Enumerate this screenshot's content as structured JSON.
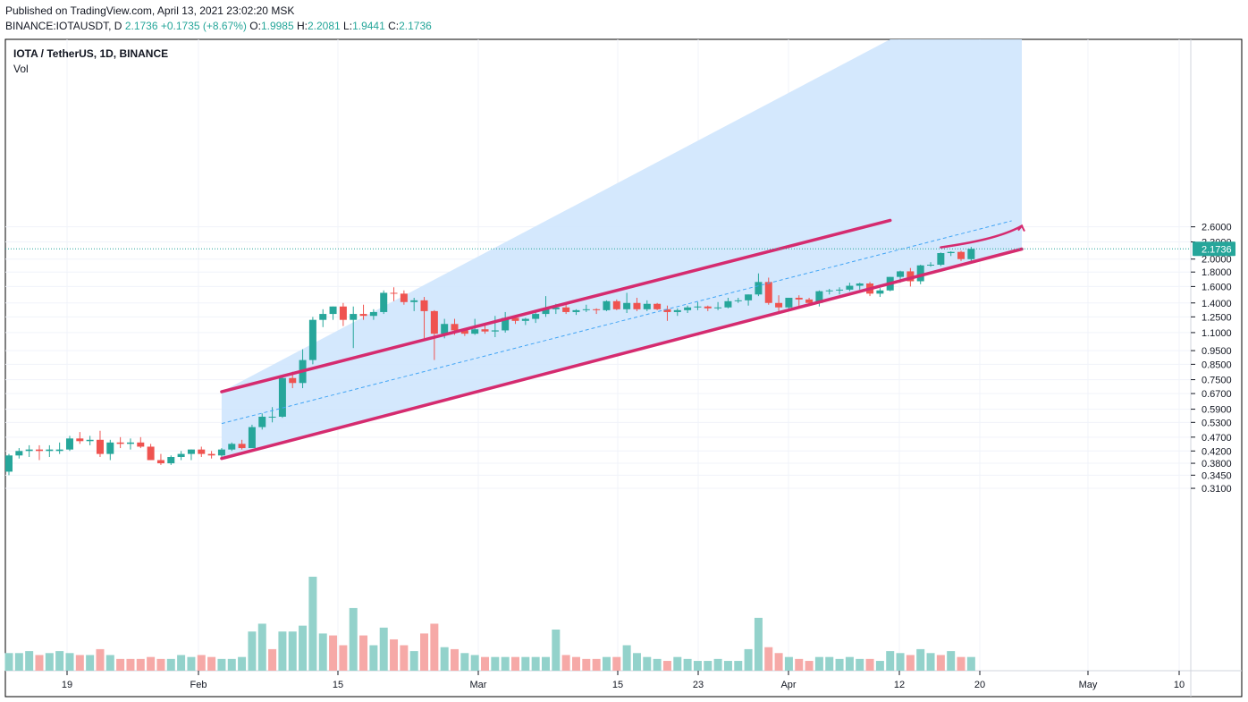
{
  "header": {
    "published": "Published on TradingView.com, April 13, 2021 23:02:20 MSK",
    "ticker": "BINANCE:IOTAUSDT, D",
    "last": "2.1736",
    "change": "+0.1735 (+8.67%)",
    "o_label": "O:",
    "o_val": "1.9985",
    "h_label": "H:",
    "h_val": "2.2081",
    "l_label": "L:",
    "l_val": "1.9441",
    "c_label": "C:",
    "c_val": "2.1736"
  },
  "legend": {
    "symbol": "IOTA / TetherUS, 1D, BINANCE",
    "vol": "Vol"
  },
  "colors": {
    "up": "#26a69a",
    "down": "#ef5350",
    "up_vol": "#93d2cb",
    "down_vol": "#f6a9a7",
    "channel": "#d52b6f",
    "fill": "#cfe6fd",
    "mid": "#42a5f5",
    "price_tag": "#26a69a"
  },
  "chart_data": {
    "type": "candlestick",
    "scale": "log",
    "price_label": "2.1736",
    "y_ticks": [
      "2.6000",
      "2.3000",
      "2.0000",
      "1.8000",
      "1.6000",
      "1.4000",
      "1.2500",
      "1.1000",
      "0.9500",
      "0.8500",
      "0.7500",
      "0.6700",
      "0.5900",
      "0.5300",
      "0.4700",
      "0.4200",
      "0.3800",
      "0.3450",
      "0.3100"
    ],
    "x_ticks": [
      "19",
      "Feb",
      "15",
      "Mar",
      "15",
      "23",
      "Apr",
      "12",
      "20",
      "May",
      "10"
    ],
    "start_date": "2021-01-11",
    "ohlc": [
      [
        0.355,
        0.41,
        0.345,
        0.405
      ],
      [
        0.405,
        0.43,
        0.395,
        0.42
      ],
      [
        0.42,
        0.44,
        0.4,
        0.425
      ],
      [
        0.425,
        0.44,
        0.39,
        0.42
      ],
      [
        0.42,
        0.44,
        0.4,
        0.425
      ],
      [
        0.42,
        0.45,
        0.41,
        0.425
      ],
      [
        0.425,
        0.475,
        0.42,
        0.465
      ],
      [
        0.465,
        0.49,
        0.445,
        0.455
      ],
      [
        0.455,
        0.475,
        0.44,
        0.46
      ],
      [
        0.46,
        0.495,
        0.4,
        0.41
      ],
      [
        0.41,
        0.46,
        0.39,
        0.45
      ],
      [
        0.45,
        0.47,
        0.43,
        0.445
      ],
      [
        0.445,
        0.465,
        0.425,
        0.45
      ],
      [
        0.45,
        0.47,
        0.43,
        0.435
      ],
      [
        0.435,
        0.445,
        0.39,
        0.39
      ],
      [
        0.39,
        0.41,
        0.375,
        0.38
      ],
      [
        0.38,
        0.405,
        0.375,
        0.4
      ],
      [
        0.4,
        0.42,
        0.39,
        0.41
      ],
      [
        0.41,
        0.425,
        0.39,
        0.425
      ],
      [
        0.425,
        0.435,
        0.4,
        0.41
      ],
      [
        0.41,
        0.42,
        0.395,
        0.405
      ],
      [
        0.405,
        0.43,
        0.4,
        0.425
      ],
      [
        0.425,
        0.45,
        0.42,
        0.445
      ],
      [
        0.445,
        0.46,
        0.425,
        0.43
      ],
      [
        0.43,
        0.52,
        0.43,
        0.51
      ],
      [
        0.51,
        0.57,
        0.5,
        0.555
      ],
      [
        0.555,
        0.6,
        0.53,
        0.555
      ],
      [
        0.555,
        0.77,
        0.55,
        0.76
      ],
      [
        0.76,
        0.8,
        0.7,
        0.73
      ],
      [
        0.73,
        0.96,
        0.7,
        0.88
      ],
      [
        0.88,
        1.25,
        0.85,
        1.22
      ],
      [
        1.22,
        1.33,
        1.15,
        1.28
      ],
      [
        1.28,
        1.36,
        1.22,
        1.36
      ],
      [
        1.36,
        1.4,
        1.16,
        1.22
      ],
      [
        1.22,
        1.36,
        0.97,
        1.28
      ],
      [
        1.28,
        1.38,
        1.22,
        1.26
      ],
      [
        1.26,
        1.33,
        1.22,
        1.3
      ],
      [
        1.3,
        1.55,
        1.28,
        1.52
      ],
      [
        1.52,
        1.59,
        1.42,
        1.51
      ],
      [
        1.51,
        1.55,
        1.38,
        1.41
      ],
      [
        1.41,
        1.46,
        1.31,
        1.43
      ],
      [
        1.43,
        1.47,
        1.05,
        1.31
      ],
      [
        1.31,
        1.32,
        0.88,
        1.09
      ],
      [
        1.09,
        1.23,
        1.05,
        1.18
      ],
      [
        1.18,
        1.23,
        1.08,
        1.12
      ],
      [
        1.12,
        1.14,
        1.07,
        1.09
      ],
      [
        1.09,
        1.23,
        1.08,
        1.13
      ],
      [
        1.13,
        1.18,
        1.09,
        1.11
      ],
      [
        1.11,
        1.26,
        1.06,
        1.12
      ],
      [
        1.12,
        1.3,
        1.1,
        1.24
      ],
      [
        1.24,
        1.26,
        1.18,
        1.21
      ],
      [
        1.21,
        1.24,
        1.17,
        1.23
      ],
      [
        1.23,
        1.31,
        1.19,
        1.28
      ],
      [
        1.28,
        1.48,
        1.25,
        1.33
      ],
      [
        1.33,
        1.39,
        1.28,
        1.35
      ],
      [
        1.35,
        1.4,
        1.28,
        1.3
      ],
      [
        1.3,
        1.33,
        1.27,
        1.32
      ],
      [
        1.32,
        1.38,
        1.3,
        1.33
      ],
      [
        1.33,
        1.34,
        1.28,
        1.32
      ],
      [
        1.32,
        1.43,
        1.31,
        1.42
      ],
      [
        1.42,
        1.44,
        1.32,
        1.33
      ],
      [
        1.33,
        1.52,
        1.29,
        1.4
      ],
      [
        1.4,
        1.46,
        1.31,
        1.33
      ],
      [
        1.33,
        1.43,
        1.31,
        1.39
      ],
      [
        1.39,
        1.4,
        1.32,
        1.33
      ],
      [
        1.33,
        1.37,
        1.21,
        1.3
      ],
      [
        1.3,
        1.34,
        1.26,
        1.32
      ],
      [
        1.32,
        1.37,
        1.29,
        1.35
      ],
      [
        1.35,
        1.41,
        1.32,
        1.36
      ],
      [
        1.36,
        1.37,
        1.31,
        1.34
      ],
      [
        1.34,
        1.41,
        1.32,
        1.35
      ],
      [
        1.35,
        1.46,
        1.34,
        1.42
      ],
      [
        1.42,
        1.46,
        1.4,
        1.43
      ],
      [
        1.43,
        1.5,
        1.37,
        1.5
      ],
      [
        1.5,
        1.78,
        1.48,
        1.66
      ],
      [
        1.66,
        1.72,
        1.38,
        1.4
      ],
      [
        1.4,
        1.49,
        1.29,
        1.35
      ],
      [
        1.35,
        1.45,
        1.33,
        1.46
      ],
      [
        1.46,
        1.49,
        1.36,
        1.44
      ],
      [
        1.44,
        1.46,
        1.38,
        1.4
      ],
      [
        1.4,
        1.55,
        1.36,
        1.54
      ],
      [
        1.54,
        1.57,
        1.5,
        1.55
      ],
      [
        1.55,
        1.59,
        1.5,
        1.56
      ],
      [
        1.56,
        1.65,
        1.54,
        1.61
      ],
      [
        1.61,
        1.65,
        1.56,
        1.64
      ],
      [
        1.64,
        1.66,
        1.48,
        1.51
      ],
      [
        1.51,
        1.58,
        1.47,
        1.55
      ],
      [
        1.55,
        1.73,
        1.54,
        1.73
      ],
      [
        1.73,
        1.82,
        1.65,
        1.81
      ],
      [
        1.81,
        1.86,
        1.6,
        1.67
      ],
      [
        1.67,
        1.91,
        1.63,
        1.9
      ],
      [
        1.9,
        1.95,
        1.88,
        1.91
      ],
      [
        1.91,
        2.11,
        1.89,
        2.1
      ],
      [
        2.1,
        2.13,
        2.05,
        2.12
      ],
      [
        2.12,
        2.14,
        1.97,
        2.0
      ],
      [
        1.9985,
        2.2081,
        1.9441,
        2.1736
      ]
    ],
    "volume": [
      [
        1,
        0.45
      ],
      [
        1,
        0.45
      ],
      [
        1,
        0.5
      ],
      [
        0,
        0.4
      ],
      [
        1,
        0.45
      ],
      [
        1,
        0.5
      ],
      [
        1,
        0.45
      ],
      [
        0,
        0.4
      ],
      [
        1,
        0.4
      ],
      [
        0,
        0.55
      ],
      [
        1,
        0.4
      ],
      [
        0,
        0.3
      ],
      [
        0,
        0.3
      ],
      [
        0,
        0.3
      ],
      [
        0,
        0.35
      ],
      [
        0,
        0.3
      ],
      [
        1,
        0.3
      ],
      [
        1,
        0.4
      ],
      [
        1,
        0.35
      ],
      [
        0,
        0.4
      ],
      [
        0,
        0.35
      ],
      [
        1,
        0.3
      ],
      [
        1,
        0.3
      ],
      [
        1,
        0.35
      ],
      [
        1,
        1.0
      ],
      [
        1,
        1.2
      ],
      [
        0,
        0.55
      ],
      [
        1,
        1.0
      ],
      [
        1,
        1.0
      ],
      [
        1,
        1.15
      ],
      [
        1,
        2.4
      ],
      [
        1,
        0.95
      ],
      [
        0,
        0.9
      ],
      [
        0,
        0.65
      ],
      [
        1,
        1.6
      ],
      [
        0,
        0.9
      ],
      [
        1,
        0.65
      ],
      [
        1,
        1.1
      ],
      [
        0,
        0.8
      ],
      [
        0,
        0.65
      ],
      [
        1,
        0.5
      ],
      [
        0,
        0.95
      ],
      [
        0,
        1.2
      ],
      [
        1,
        0.6
      ],
      [
        0,
        0.55
      ],
      [
        1,
        0.45
      ],
      [
        1,
        0.4
      ],
      [
        0,
        0.35
      ],
      [
        1,
        0.35
      ],
      [
        1,
        0.35
      ],
      [
        0,
        0.35
      ],
      [
        1,
        0.35
      ],
      [
        1,
        0.35
      ],
      [
        1,
        0.35
      ],
      [
        1,
        1.05
      ],
      [
        0,
        0.4
      ],
      [
        0,
        0.35
      ],
      [
        0,
        0.3
      ],
      [
        0,
        0.3
      ],
      [
        1,
        0.35
      ],
      [
        0,
        0.35
      ],
      [
        1,
        0.65
      ],
      [
        1,
        0.45
      ],
      [
        1,
        0.35
      ],
      [
        1,
        0.3
      ],
      [
        0,
        0.25
      ],
      [
        1,
        0.35
      ],
      [
        1,
        0.3
      ],
      [
        1,
        0.25
      ],
      [
        1,
        0.25
      ],
      [
        1,
        0.3
      ],
      [
        1,
        0.25
      ],
      [
        1,
        0.25
      ],
      [
        1,
        0.55
      ],
      [
        1,
        1.35
      ],
      [
        0,
        0.6
      ],
      [
        0,
        0.45
      ],
      [
        1,
        0.35
      ],
      [
        0,
        0.3
      ],
      [
        0,
        0.25
      ],
      [
        1,
        0.35
      ],
      [
        1,
        0.35
      ],
      [
        1,
        0.3
      ],
      [
        1,
        0.35
      ],
      [
        1,
        0.3
      ],
      [
        0,
        0.3
      ],
      [
        1,
        0.25
      ],
      [
        1,
        0.5
      ],
      [
        1,
        0.45
      ],
      [
        0,
        0.4
      ],
      [
        1,
        0.55
      ],
      [
        1,
        0.45
      ],
      [
        0,
        0.4
      ],
      [
        1,
        0.5
      ],
      [
        0,
        0.35
      ],
      [
        1,
        0.35
      ]
    ],
    "channel": {
      "upper": [
        [
          "2021-02-01",
          0.68
        ],
        [
          "2021-04-08",
          2.74
        ]
      ],
      "lower": [
        [
          "2021-02-01",
          0.395
        ],
        [
          "2021-04-21",
          2.17
        ]
      ],
      "middle": [
        [
          "2021-02-01",
          0.525
        ],
        [
          "2021-04-20",
          2.73
        ]
      ],
      "fill_end": "2021-04-21"
    },
    "projection": [
      [
        "2021-04-13",
        2.2
      ],
      [
        "2021-04-16",
        2.28
      ],
      [
        "2021-04-19",
        2.39
      ],
      [
        "2021-04-21",
        2.62
      ]
    ]
  }
}
